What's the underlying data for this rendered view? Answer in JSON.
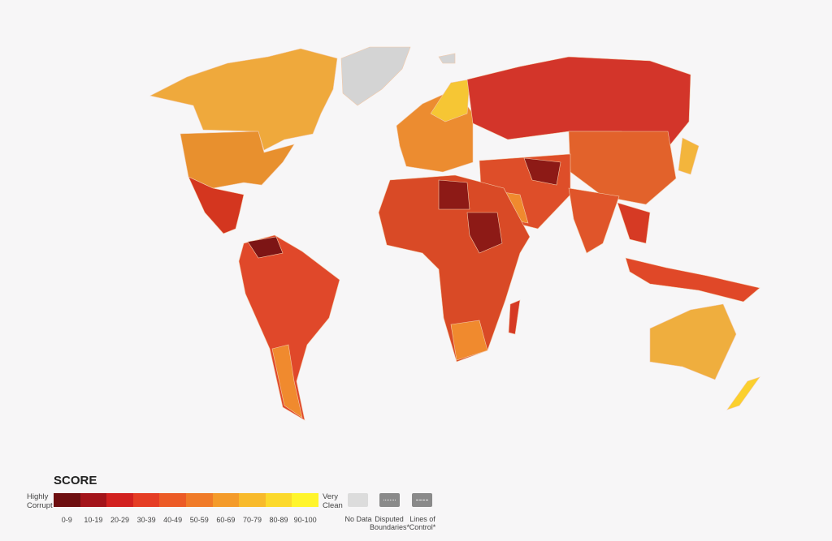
{
  "legend": {
    "title": "SCORE",
    "low_label": "Highly Corrupt",
    "high_label": "Very Clean",
    "bins": [
      {
        "label": "0-9",
        "color": "#6e0e10"
      },
      {
        "label": "10-19",
        "color": "#a3141a"
      },
      {
        "label": "20-29",
        "color": "#d2211f"
      },
      {
        "label": "30-39",
        "color": "#e53d24"
      },
      {
        "label": "40-49",
        "color": "#ec5b26"
      },
      {
        "label": "50-59",
        "color": "#f07b28"
      },
      {
        "label": "60-69",
        "color": "#f49b2a"
      },
      {
        "label": "70-79",
        "color": "#f8ba2b"
      },
      {
        "label": "80-89",
        "color": "#fcd92c"
      },
      {
        "label": "90-100",
        "color": "#fff52c"
      }
    ],
    "no_data": "No Data",
    "disputed": "Disputed Boundaries*",
    "lines_of_control": "Lines of Control*"
  }
}
